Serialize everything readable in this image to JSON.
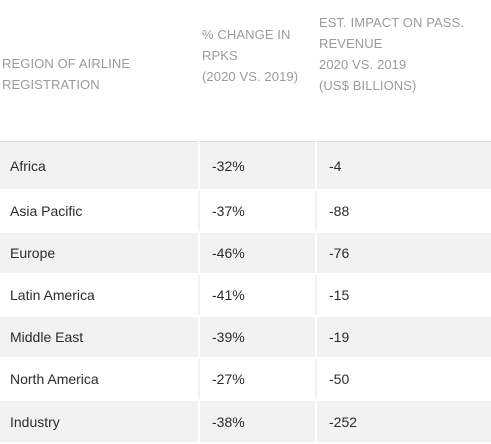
{
  "table": {
    "headers": {
      "region": [
        "REGION OF AIRLINE",
        "REGISTRATION"
      ],
      "rpk_change": [
        "% CHANGE IN",
        "RPKS",
        "(2020 VS. 2019)"
      ],
      "revenue_impact": [
        "EST. IMPACT ON PASS.",
        "REVENUE",
        "2020 VS. 2019",
        "(US$ BILLIONS)"
      ]
    },
    "rows": [
      {
        "region": "Africa",
        "rpk_change": "-32%",
        "revenue_impact": "-4"
      },
      {
        "region": "Asia Pacific",
        "rpk_change": "-37%",
        "revenue_impact": "-88"
      },
      {
        "region": "Europe",
        "rpk_change": "-46%",
        "revenue_impact": "-76"
      },
      {
        "region": "Latin America",
        "rpk_change": "-41%",
        "revenue_impact": "-15"
      },
      {
        "region": "Middle East",
        "rpk_change": "-39%",
        "revenue_impact": "-19"
      },
      {
        "region": "North America",
        "rpk_change": "-27%",
        "revenue_impact": "-50"
      },
      {
        "region": "Industry",
        "rpk_change": "-38%",
        "revenue_impact": "-252"
      }
    ]
  },
  "colors": {
    "header_text": "#9b9b9b",
    "row_stripe": "#f2f2f2",
    "body_text": "#2b2b2b",
    "divider": "#dcdcdc"
  }
}
